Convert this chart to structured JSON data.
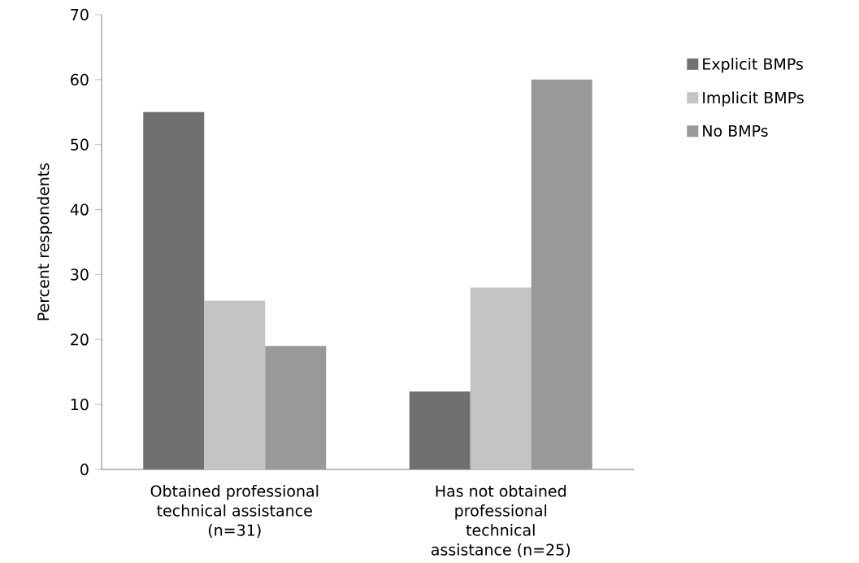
{
  "chart_data": {
    "type": "bar",
    "ylabel": "Percent respondents",
    "categories": [
      "Obtained professional technical assistance (n=31)",
      "Has not obtained professional technical assistance (n=25)"
    ],
    "series": [
      {
        "name": "Explicit BMPs",
        "color": "#707070",
        "values": [
          55,
          12
        ]
      },
      {
        "name": "Implicit BMPs",
        "color": "#c4c4c4",
        "values": [
          26,
          28
        ]
      },
      {
        "name": "No BMPs",
        "color": "#999999",
        "values": [
          19,
          60
        ]
      }
    ],
    "ylim": [
      0,
      70
    ],
    "yticks": [
      0,
      10,
      20,
      30,
      40,
      50,
      60,
      70
    ],
    "grid": false,
    "legend": "right"
  }
}
